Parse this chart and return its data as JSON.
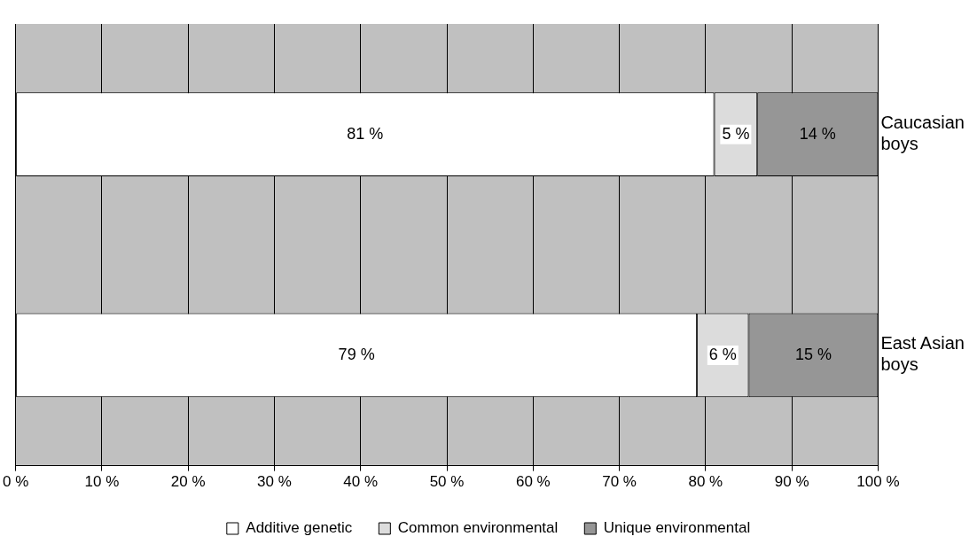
{
  "chart_data": {
    "type": "bar",
    "orientation": "horizontal",
    "stacked": true,
    "categories": [
      "Caucasian boys",
      "East Asian boys"
    ],
    "series": [
      {
        "name": "Additive genetic",
        "color": "#ffffff",
        "values": [
          81,
          79
        ],
        "value_labels": [
          "81 %",
          "79 %"
        ]
      },
      {
        "name": "Common environmental",
        "color": "#dcdcdc",
        "values": [
          5,
          6
        ],
        "value_labels": [
          "5 %",
          "6 %"
        ]
      },
      {
        "name": "Unique environmental",
        "color": "#969696",
        "values": [
          14,
          15
        ],
        "value_labels": [
          "14 %",
          "15 %"
        ]
      }
    ],
    "xlim": [
      0,
      100
    ],
    "xticks": [
      {
        "value": 0,
        "label": "0 %"
      },
      {
        "value": 10,
        "label": "10 %"
      },
      {
        "value": 20,
        "label": "20 %"
      },
      {
        "value": 30,
        "label": "30 %"
      },
      {
        "value": 40,
        "label": "40 %"
      },
      {
        "value": 50,
        "label": "50 %"
      },
      {
        "value": 60,
        "label": "60 %"
      },
      {
        "value": 70,
        "label": "70 %"
      },
      {
        "value": 80,
        "label": "80 %"
      },
      {
        "value": 90,
        "label": "90 %"
      },
      {
        "value": 100,
        "label": "100 %"
      }
    ],
    "grid": "x",
    "legend": "bottom"
  }
}
